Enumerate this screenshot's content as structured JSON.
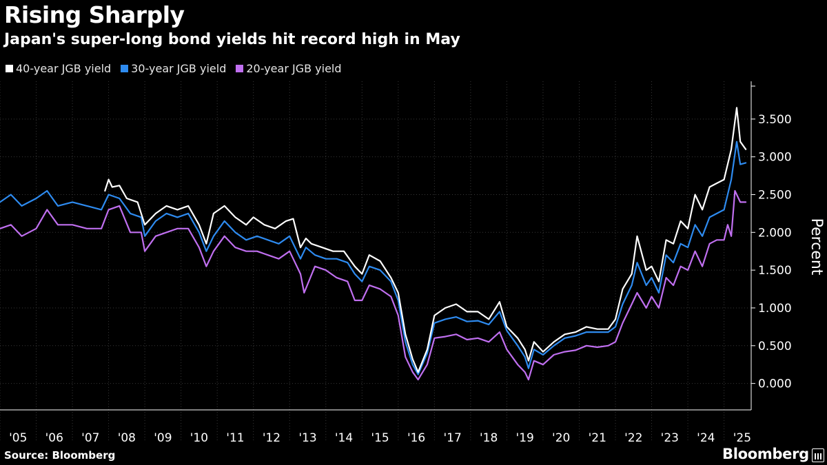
{
  "title": "Rising Sharply",
  "subtitle": "Japan's super-long bond yields hit record high in May",
  "source": "Source: Bloomberg",
  "brand": "Bloomberg",
  "chart_data": {
    "type": "line",
    "ylabel": "Percent",
    "ylim": [
      -0.35,
      4.0
    ],
    "yticks": [
      0,
      0.5,
      1.0,
      1.5,
      2.0,
      2.5,
      3.0,
      3.5
    ],
    "ytick_labels": [
      "0.000",
      "0.500",
      "1.000",
      "1.500",
      "2.000",
      "2.500",
      "3.000",
      "3.500"
    ],
    "xlim": [
      2005.0,
      2025.75
    ],
    "xtick_labels": [
      "'05",
      "'06",
      "'07",
      "'08",
      "'09",
      "'10",
      "'11",
      "'12",
      "'13",
      "'14",
      "'15",
      "'16",
      "'17",
      "'18",
      "'19",
      "'20",
      "'21",
      "'22",
      "'23",
      "'24",
      "'25"
    ],
    "legend_position": "top-left",
    "series": [
      {
        "name": "40-year JGB yield",
        "color": "#ffffff",
        "x": [
          2007.9,
          2008.0,
          2008.1,
          2008.3,
          2008.5,
          2008.8,
          2009.0,
          2009.3,
          2009.6,
          2009.9,
          2010.2,
          2010.5,
          2010.7,
          2010.8,
          2010.9,
          2011.2,
          2011.5,
          2011.8,
          2012.0,
          2012.3,
          2012.6,
          2012.9,
          2013.1,
          2013.3,
          2013.45,
          2013.6,
          2013.9,
          2014.2,
          2014.5,
          2014.8,
          2015.0,
          2015.2,
          2015.5,
          2015.8,
          2016.0,
          2016.2,
          2016.4,
          2016.55,
          2016.8,
          2017.0,
          2017.3,
          2017.6,
          2017.9,
          2018.2,
          2018.5,
          2018.8,
          2019.0,
          2019.3,
          2019.5,
          2019.6,
          2019.75,
          2020.0,
          2020.3,
          2020.6,
          2020.9,
          2021.2,
          2021.5,
          2021.8,
          2022.0,
          2022.2,
          2022.45,
          2022.6,
          2022.85,
          2023.0,
          2023.2,
          2023.4,
          2023.6,
          2023.8,
          2024.0,
          2024.2,
          2024.4,
          2024.6,
          2024.8,
          2025.0,
          2025.2,
          2025.35,
          2025.45,
          2025.6
        ],
        "y": [
          2.55,
          2.7,
          2.6,
          2.62,
          2.45,
          2.4,
          2.1,
          2.25,
          2.35,
          2.3,
          2.35,
          2.1,
          1.85,
          2.05,
          2.25,
          2.35,
          2.2,
          2.1,
          2.2,
          2.1,
          2.05,
          2.15,
          2.18,
          1.8,
          1.92,
          1.85,
          1.8,
          1.75,
          1.75,
          1.55,
          1.45,
          1.7,
          1.62,
          1.4,
          1.2,
          0.65,
          0.32,
          0.15,
          0.45,
          0.9,
          1.0,
          1.05,
          0.95,
          0.95,
          0.85,
          1.08,
          0.75,
          0.6,
          0.45,
          0.3,
          0.55,
          0.42,
          0.55,
          0.65,
          0.68,
          0.75,
          0.72,
          0.72,
          0.85,
          1.25,
          1.45,
          1.95,
          1.5,
          1.55,
          1.35,
          1.9,
          1.85,
          2.15,
          2.05,
          2.5,
          2.3,
          2.6,
          2.65,
          2.7,
          3.1,
          3.65,
          3.2,
          3.1
        ]
      },
      {
        "name": "30-year JGB yield",
        "color": "#2e8bf0",
        "x": [
          2005.0,
          2005.3,
          2005.6,
          2006.0,
          2006.3,
          2006.6,
          2007.0,
          2007.4,
          2007.8,
          2008.0,
          2008.3,
          2008.6,
          2008.9,
          2009.0,
          2009.3,
          2009.6,
          2009.9,
          2010.2,
          2010.5,
          2010.7,
          2010.9,
          2011.2,
          2011.5,
          2011.8,
          2012.1,
          2012.4,
          2012.7,
          2013.0,
          2013.3,
          2013.45,
          2013.7,
          2014.0,
          2014.3,
          2014.6,
          2014.8,
          2015.0,
          2015.2,
          2015.5,
          2015.8,
          2016.0,
          2016.2,
          2016.4,
          2016.55,
          2016.8,
          2017.0,
          2017.3,
          2017.6,
          2017.9,
          2018.2,
          2018.5,
          2018.8,
          2019.0,
          2019.3,
          2019.5,
          2019.6,
          2019.75,
          2020.0,
          2020.3,
          2020.6,
          2020.9,
          2021.2,
          2021.5,
          2021.8,
          2022.0,
          2022.2,
          2022.45,
          2022.6,
          2022.85,
          2023.0,
          2023.2,
          2023.4,
          2023.6,
          2023.8,
          2024.0,
          2024.2,
          2024.4,
          2024.6,
          2024.8,
          2025.0,
          2025.2,
          2025.35,
          2025.45,
          2025.6
        ],
        "y": [
          2.4,
          2.5,
          2.35,
          2.45,
          2.55,
          2.35,
          2.4,
          2.35,
          2.3,
          2.5,
          2.45,
          2.25,
          2.2,
          1.95,
          2.15,
          2.25,
          2.2,
          2.25,
          2.0,
          1.75,
          1.95,
          2.15,
          2.0,
          1.9,
          1.95,
          1.9,
          1.85,
          1.95,
          1.65,
          1.8,
          1.7,
          1.65,
          1.65,
          1.6,
          1.45,
          1.35,
          1.55,
          1.5,
          1.35,
          1.1,
          0.55,
          0.25,
          0.12,
          0.4,
          0.8,
          0.85,
          0.88,
          0.82,
          0.83,
          0.78,
          0.95,
          0.7,
          0.5,
          0.35,
          0.2,
          0.45,
          0.38,
          0.5,
          0.6,
          0.63,
          0.68,
          0.68,
          0.68,
          0.75,
          1.05,
          1.3,
          1.6,
          1.3,
          1.4,
          1.2,
          1.7,
          1.6,
          1.85,
          1.8,
          2.1,
          1.95,
          2.2,
          2.25,
          2.3,
          2.7,
          3.2,
          2.9,
          2.92
        ]
      },
      {
        "name": "20-year JGB yield",
        "color": "#c06ff0",
        "x": [
          2005.0,
          2005.3,
          2005.6,
          2006.0,
          2006.3,
          2006.6,
          2007.0,
          2007.4,
          2007.8,
          2008.0,
          2008.3,
          2008.6,
          2008.9,
          2009.0,
          2009.3,
          2009.6,
          2009.9,
          2010.2,
          2010.5,
          2010.7,
          2010.9,
          2011.2,
          2011.5,
          2011.8,
          2012.1,
          2012.4,
          2012.7,
          2013.0,
          2013.3,
          2013.4,
          2013.7,
          2014.0,
          2014.3,
          2014.6,
          2014.8,
          2015.0,
          2015.2,
          2015.5,
          2015.8,
          2016.0,
          2016.2,
          2016.4,
          2016.55,
          2016.8,
          2017.0,
          2017.3,
          2017.6,
          2017.9,
          2018.2,
          2018.5,
          2018.8,
          2019.0,
          2019.3,
          2019.5,
          2019.6,
          2019.75,
          2020.0,
          2020.3,
          2020.6,
          2020.9,
          2021.2,
          2021.5,
          2021.8,
          2022.0,
          2022.2,
          2022.45,
          2022.6,
          2022.85,
          2023.0,
          2023.2,
          2023.4,
          2023.6,
          2023.8,
          2024.0,
          2024.2,
          2024.4,
          2024.6,
          2024.8,
          2025.0,
          2025.1,
          2025.2,
          2025.3,
          2025.45,
          2025.6
        ],
        "y": [
          2.05,
          2.1,
          1.95,
          2.05,
          2.3,
          2.1,
          2.1,
          2.05,
          2.05,
          2.3,
          2.35,
          2.0,
          2.0,
          1.75,
          1.95,
          2.0,
          2.05,
          2.05,
          1.8,
          1.55,
          1.75,
          1.95,
          1.8,
          1.75,
          1.75,
          1.7,
          1.65,
          1.75,
          1.45,
          1.2,
          1.55,
          1.5,
          1.4,
          1.35,
          1.1,
          1.1,
          1.3,
          1.25,
          1.15,
          0.9,
          0.35,
          0.15,
          0.05,
          0.25,
          0.6,
          0.62,
          0.65,
          0.58,
          0.6,
          0.55,
          0.68,
          0.45,
          0.25,
          0.15,
          0.05,
          0.3,
          0.25,
          0.38,
          0.42,
          0.44,
          0.5,
          0.48,
          0.5,
          0.55,
          0.8,
          1.05,
          1.2,
          1.0,
          1.15,
          1.0,
          1.4,
          1.3,
          1.55,
          1.5,
          1.75,
          1.55,
          1.85,
          1.9,
          1.9,
          2.1,
          1.95,
          2.55,
          2.4,
          2.4
        ]
      }
    ]
  }
}
